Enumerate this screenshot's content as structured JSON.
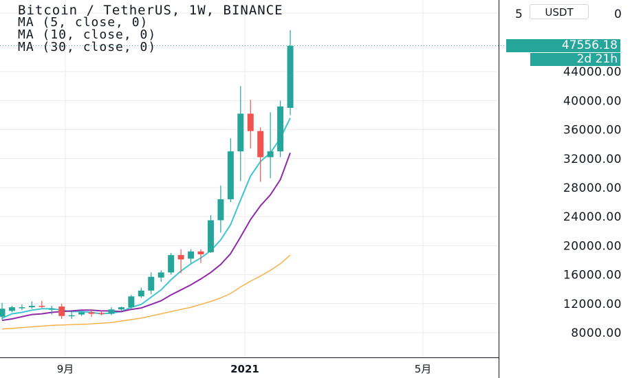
{
  "header": {
    "title": "Bitcoin / TetherUS, 1W, BINANCE",
    "indicators": [
      "MA (5, close, 0)",
      "MA (10, close, 0)",
      "MA (30, close, 0)"
    ]
  },
  "currency_button": "USDT",
  "price_scale": {
    "last_price_label": "47556.18",
    "countdown_label": "2d 21h",
    "partial_top_label_left": "5",
    "partial_top_label_right": "0"
  },
  "colors": {
    "up": "#26a69a",
    "down": "#ef5350",
    "ma5": "#3ec5d1",
    "ma10": "#8e2aa8",
    "ma30": "#f7b24a",
    "grid": "#ebebeb",
    "axis_text": "#131722"
  },
  "chart_data": {
    "type": "candlestick",
    "title": "Bitcoin / TetherUS, 1W, BINANCE",
    "yticks": [
      8000,
      12000,
      16000,
      20000,
      24000,
      28000,
      32000,
      36000,
      40000,
      44000
    ],
    "ytick_labels": [
      "8000.00",
      "12000.00",
      "16000.00",
      "20000.00",
      "24000.00",
      "28000.00",
      "32000.00",
      "36000.00",
      "40000.00",
      "44000.00"
    ],
    "ylim": [
      5500,
      50000
    ],
    "x_tick_labels": [
      "9月",
      "2021",
      "5月"
    ],
    "last_price": 47556.18,
    "candles": [
      {
        "o": 10200,
        "h": 12100,
        "l": 9800,
        "c": 11300
      },
      {
        "o": 11000,
        "h": 11700,
        "l": 10800,
        "c": 11500
      },
      {
        "o": 11400,
        "h": 11900,
        "l": 11100,
        "c": 11500
      },
      {
        "o": 11500,
        "h": 12300,
        "l": 11300,
        "c": 11700
      },
      {
        "o": 11700,
        "h": 12400,
        "l": 11400,
        "c": 11600
      },
      {
        "o": 11300,
        "h": 11700,
        "l": 10500,
        "c": 11300
      },
      {
        "o": 11600,
        "h": 12000,
        "l": 9900,
        "c": 10300
      },
      {
        "o": 10300,
        "h": 10900,
        "l": 9900,
        "c": 10400
      },
      {
        "o": 10500,
        "h": 10900,
        "l": 10300,
        "c": 10800
      },
      {
        "o": 10800,
        "h": 11100,
        "l": 10200,
        "c": 10600
      },
      {
        "o": 10700,
        "h": 11000,
        "l": 10400,
        "c": 10600
      },
      {
        "o": 10600,
        "h": 11500,
        "l": 10400,
        "c": 11200
      },
      {
        "o": 11200,
        "h": 11600,
        "l": 11000,
        "c": 11500
      },
      {
        "o": 11500,
        "h": 13200,
        "l": 11300,
        "c": 13000
      },
      {
        "o": 13000,
        "h": 14200,
        "l": 12800,
        "c": 13800
      },
      {
        "o": 13800,
        "h": 16300,
        "l": 13300,
        "c": 15700
      },
      {
        "o": 15600,
        "h": 16600,
        "l": 15000,
        "c": 16300
      },
      {
        "o": 16300,
        "h": 19000,
        "l": 16000,
        "c": 18700
      },
      {
        "o": 18700,
        "h": 19500,
        "l": 16200,
        "c": 18100
      },
      {
        "o": 18200,
        "h": 19500,
        "l": 17600,
        "c": 19200
      },
      {
        "o": 19200,
        "h": 19500,
        "l": 17600,
        "c": 18800
      },
      {
        "o": 19100,
        "h": 24200,
        "l": 19000,
        "c": 23500
      },
      {
        "o": 23500,
        "h": 28300,
        "l": 21800,
        "c": 26400
      },
      {
        "o": 26400,
        "h": 34800,
        "l": 26000,
        "c": 33000
      },
      {
        "o": 33000,
        "h": 42000,
        "l": 28900,
        "c": 38200
      },
      {
        "o": 38200,
        "h": 40100,
        "l": 33400,
        "c": 35800
      },
      {
        "o": 35800,
        "h": 36300,
        "l": 28800,
        "c": 32200
      },
      {
        "o": 32200,
        "h": 38400,
        "l": 29300,
        "c": 33000
      },
      {
        "o": 33000,
        "h": 40000,
        "l": 32200,
        "c": 39200
      },
      {
        "o": 39000,
        "h": 49700,
        "l": 38000,
        "c": 47556.18
      }
    ],
    "series": [
      {
        "name": "MA (5, close, 0)",
        "values": [
          10000,
          10600,
          10800,
          11100,
          11300,
          11300,
          11100,
          10900,
          10900,
          10800,
          10600,
          10700,
          10900,
          11500,
          11900,
          12900,
          13900,
          15300,
          16500,
          17500,
          18300,
          19300,
          20800,
          22900,
          26300,
          29600,
          31600,
          32800,
          34800,
          37600
        ]
      },
      {
        "name": "MA (10, close, 0)",
        "values": [
          9700,
          9900,
          10200,
          10500,
          10600,
          10800,
          10900,
          11000,
          11100,
          11100,
          11000,
          11000,
          10900,
          11200,
          11400,
          11900,
          12400,
          13200,
          13900,
          14600,
          15400,
          16300,
          17400,
          18900,
          21200,
          23600,
          25500,
          27000,
          29100,
          32800
        ]
      },
      {
        "name": "MA (30, close, 0)",
        "values": [
          8500,
          8600,
          8700,
          8800,
          8900,
          9000,
          9050,
          9100,
          9150,
          9200,
          9300,
          9400,
          9600,
          9800,
          10000,
          10300,
          10600,
          10900,
          11200,
          11500,
          11900,
          12300,
          12800,
          13400,
          14300,
          15100,
          15800,
          16600,
          17500,
          18700
        ]
      }
    ]
  }
}
